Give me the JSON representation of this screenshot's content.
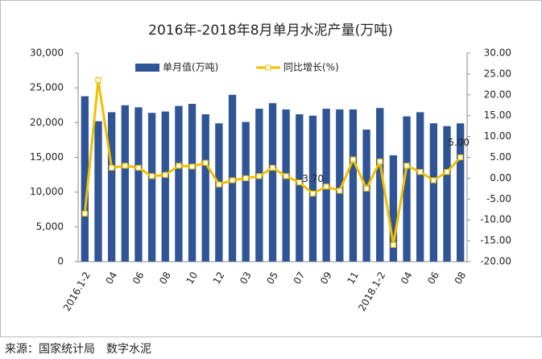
{
  "chart_data": {
    "type": "bar_line",
    "title": "2016年-2018年8月单月水泥产量(万吨)",
    "source": "来源：国家统计局　数字水泥",
    "categories": [
      "2016.1-2",
      null,
      "04",
      null,
      "06",
      null,
      "08",
      null,
      "10",
      null,
      "12",
      null,
      "03",
      null,
      "05",
      null,
      "07",
      null,
      "09",
      null,
      "11",
      null,
      "2018.1-2",
      null,
      "04",
      null,
      "06",
      null,
      "08"
    ],
    "series": [
      {
        "name": "单月值(万吨)",
        "type": "bar",
        "color": "#2f5597",
        "values": [
          23800,
          20200,
          21500,
          22500,
          22200,
          21400,
          21600,
          22400,
          22700,
          21200,
          19900,
          24000,
          20100,
          22000,
          22800,
          21900,
          21200,
          21000,
          22000,
          21900,
          21900,
          19000,
          22100,
          15300,
          20900,
          21500,
          19900,
          19500,
          19900
        ]
      },
      {
        "name": "同比增长(%)",
        "type": "line",
        "axis": "y2",
        "color": "#f0c000",
        "values": [
          -8.5,
          23.5,
          2.5,
          3,
          2.5,
          0.5,
          0.8,
          3,
          2.8,
          3.7,
          -1.5,
          -0.5,
          0,
          0.5,
          2.5,
          0.5,
          -1,
          -3.7,
          -2,
          -3,
          4.5,
          -2.5,
          4,
          -16,
          3,
          1.5,
          -0.5,
          1.5,
          5
        ],
        "value_labels": [
          null,
          null,
          null,
          null,
          null,
          null,
          null,
          null,
          null,
          null,
          null,
          null,
          null,
          null,
          null,
          null,
          null,
          "-3.70",
          null,
          null,
          null,
          null,
          null,
          null,
          null,
          null,
          null,
          null,
          "5.00"
        ]
      }
    ],
    "ylim": [
      0,
      30000
    ],
    "yticks": [
      0,
      {
        "value": 5000,
        "label": "5,000"
      },
      {
        "value": 10000,
        "label": "10,000"
      },
      {
        "value": 15000,
        "label": "15,000"
      },
      {
        "value": 20000,
        "label": "20,000"
      },
      {
        "value": 25000,
        "label": "25,000"
      },
      {
        "value": 30000,
        "label": "30,000"
      }
    ],
    "y2lim": [
      -20,
      30
    ],
    "y2ticks": [
      {
        "value": -20,
        "label": "-20.00"
      },
      {
        "value": -15,
        "label": "-15.00"
      },
      {
        "value": -10,
        "label": "-10.00"
      },
      {
        "value": -5,
        "label": "-5.00"
      },
      {
        "value": 0,
        "label": "0.00"
      },
      {
        "value": 5,
        "label": "5.00"
      },
      {
        "value": 10,
        "label": "10.00"
      },
      {
        "value": 15,
        "label": "15.00"
      },
      {
        "value": 20,
        "label": "20.00"
      },
      {
        "value": 25,
        "label": "25.00"
      },
      {
        "value": 30,
        "label": "30.00"
      }
    ],
    "legend": "top"
  }
}
